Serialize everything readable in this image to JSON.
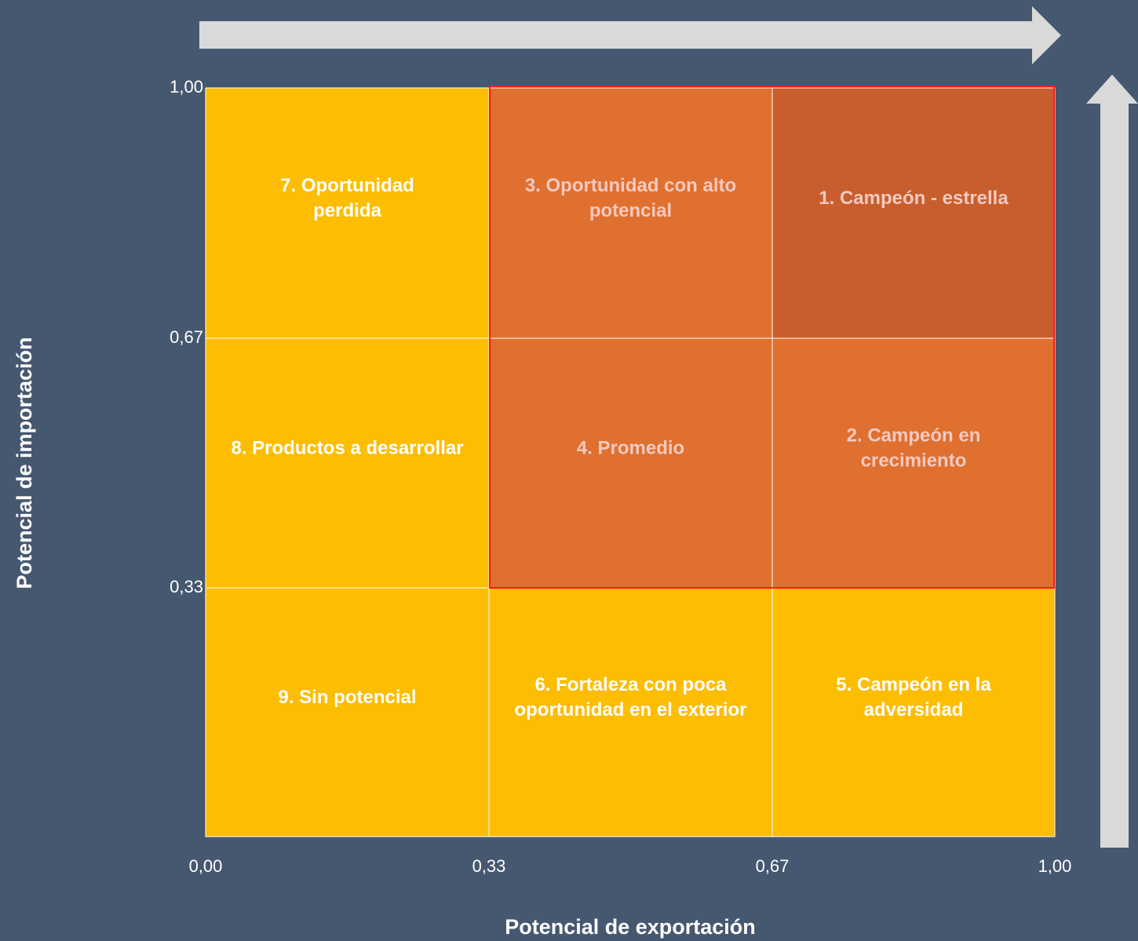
{
  "x_axis": {
    "title": "Potencial de exportación",
    "ticks": [
      "0,00",
      "0,33",
      "0,67",
      "1,00"
    ]
  },
  "y_axis": {
    "title": "Potencial de importación",
    "ticks": [
      "0,33",
      "0,67",
      "1,00"
    ]
  },
  "cells": [
    {
      "row": 0,
      "col": 0,
      "lines": [
        "7. Oportunidad",
        "perdida"
      ],
      "fill": "#fcbd02",
      "text_color": "#ffffff"
    },
    {
      "row": 0,
      "col": 1,
      "lines": [
        "3. Oportunidad con alto",
        "potencial"
      ],
      "fill": "#e0702f",
      "text_color": "#f4c9c0"
    },
    {
      "row": 0,
      "col": 2,
      "lines": [
        "1. Campeón - estrella"
      ],
      "fill": "#c85e2d",
      "text_color": "#f4c9c0"
    },
    {
      "row": 1,
      "col": 0,
      "lines": [
        "8. Productos a desarrollar"
      ],
      "fill": "#fcbd02",
      "text_color": "#ffffff"
    },
    {
      "row": 1,
      "col": 1,
      "lines": [
        "4. Promedio"
      ],
      "fill": "#e0702f",
      "text_color": "#f4c9c0"
    },
    {
      "row": 1,
      "col": 2,
      "lines": [
        "2. Campeón en",
        "crecimiento"
      ],
      "fill": "#e0702f",
      "text_color": "#f4c9c0"
    },
    {
      "row": 2,
      "col": 0,
      "lines": [
        "9. Sin potencial"
      ],
      "fill": "#fcbd02",
      "text_color": "#ffffff"
    },
    {
      "row": 2,
      "col": 1,
      "lines": [
        "6. Fortaleza con poca",
        "oportunidad en el exterior"
      ],
      "fill": "#fcbd02",
      "text_color": "#ffffff"
    },
    {
      "row": 2,
      "col": 2,
      "lines": [
        "5. Campeón en la",
        "adversidad"
      ],
      "fill": "#fcbd02",
      "text_color": "#ffffff"
    }
  ]
}
